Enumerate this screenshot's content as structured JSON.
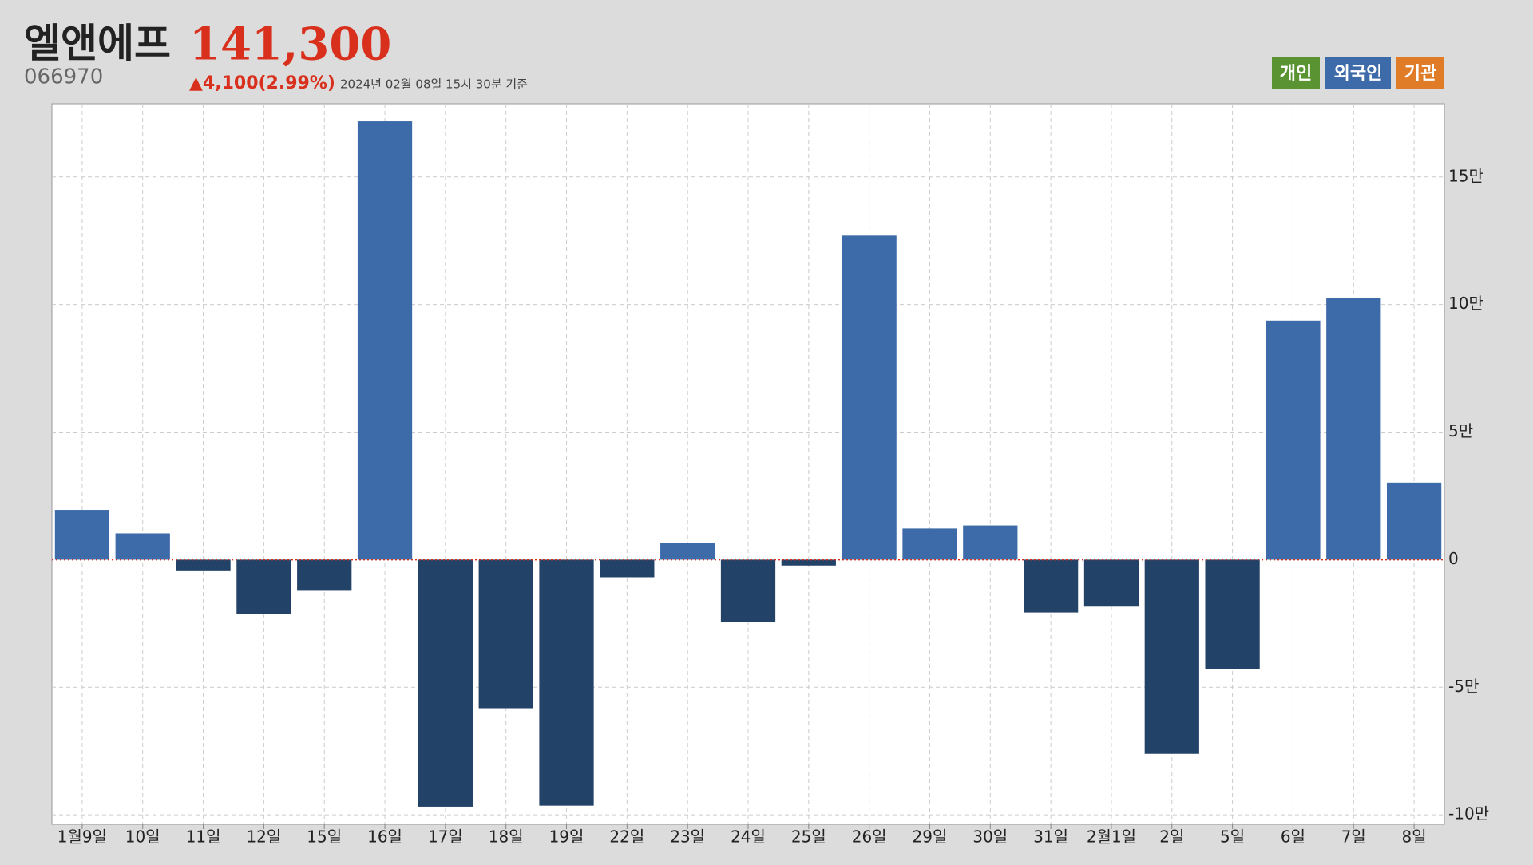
{
  "chart_data": {
    "type": "bar",
    "title": "엘앤에프",
    "code": "066970",
    "price": "141,300",
    "change": "▲4,100(2.99%)",
    "timestamp": "2024년 02월 08일 15시 30분 기준",
    "legend_buttons": [
      {
        "label": "개인",
        "color": "#5a9332"
      },
      {
        "label": "외국인",
        "color": "#3d6aa8"
      },
      {
        "label": "기관",
        "color": "#e07b28"
      }
    ],
    "categories": [
      "1월9일",
      "10일",
      "11일",
      "12일",
      "15일",
      "16일",
      "17일",
      "18일",
      "19일",
      "22일",
      "23일",
      "24일",
      "25일",
      "26일",
      "29일",
      "30일",
      "31일",
      "2월1일",
      "2일",
      "5일",
      "6일",
      "7일",
      "8일"
    ],
    "values": [
      19500,
      10300,
      -4200,
      -21400,
      -12200,
      171800,
      -96800,
      -58200,
      -96400,
      -6900,
      6500,
      -24500,
      -2300,
      127000,
      12200,
      13400,
      -20700,
      -18400,
      -76100,
      -42900,
      93700,
      102500,
      30200
    ],
    "color": "#3d6aa8",
    "negative_color": "#234268",
    "ylim": [
      -103700,
      178700
    ],
    "yticks": [
      {
        "value": -100000,
        "label": "-10만"
      },
      {
        "value": -50000,
        "label": "-5만"
      },
      0,
      {
        "value": 50000,
        "label": "5만"
      },
      {
        "value": 100000,
        "label": "10만"
      },
      {
        "value": 150000,
        "label": "15만"
      }
    ],
    "grid": true
  }
}
